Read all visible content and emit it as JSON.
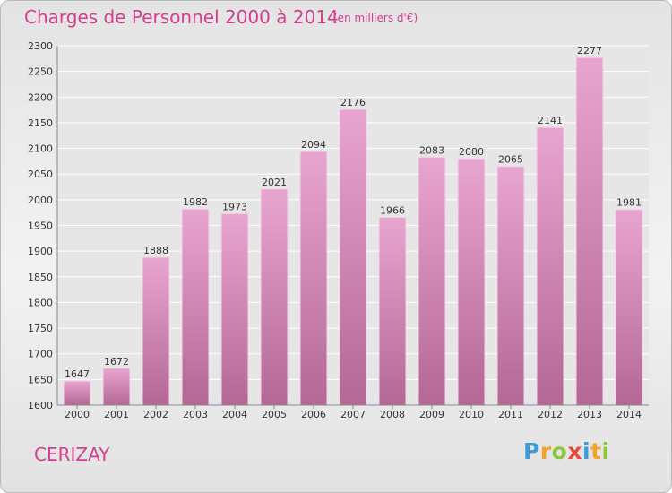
{
  "title": "Charges de Personnel 2000 à 2014",
  "subtitle": "(en milliers d'€)",
  "commune": "CERIZAY",
  "logo": {
    "letters": [
      "P",
      "r",
      "o",
      "x",
      "i",
      "t",
      "i"
    ],
    "colors": [
      "#3f9bd7",
      "#f2a32c",
      "#8cc640",
      "#e84b3c",
      "#3f9bd7",
      "#f2a32c",
      "#8cc640"
    ]
  },
  "colors": {
    "bar": "#c9609f",
    "accent": "#d23f8c"
  },
  "chart_data": {
    "type": "bar",
    "categories": [
      "2000",
      "2001",
      "2002",
      "2003",
      "2004",
      "2005",
      "2006",
      "2007",
      "2008",
      "2009",
      "2010",
      "2011",
      "2012",
      "2013",
      "2014"
    ],
    "values": [
      1647,
      1672,
      1888,
      1982,
      1973,
      2021,
      2094,
      2176,
      1966,
      2083,
      2080,
      2065,
      2141,
      2277,
      1981
    ],
    "ylim": [
      1600,
      2300
    ],
    "yticks": [
      1600,
      1650,
      1700,
      1750,
      1800,
      1850,
      1900,
      1950,
      2000,
      2050,
      2100,
      2150,
      2200,
      2250,
      2300
    ],
    "grid": true
  }
}
